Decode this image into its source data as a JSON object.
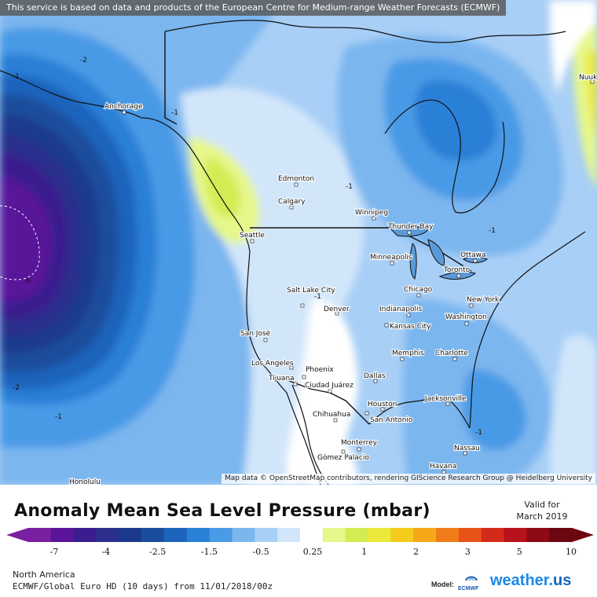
{
  "notice": "This service is based on data and products of the European Centre for Medium-range Weather Forecasts (ECMWF)",
  "attribution": "Map data © OpenStreetMap contributors, rendering GIScience Research Group @ Heidelberg University",
  "title": "Anomaly Mean Sea Level Pressure (mbar)",
  "valid": {
    "line1": "Valid for",
    "line2": "March 2019"
  },
  "region": "North America",
  "model_line": "ECMWF/Global Euro HD (10 days) from 11/01/2018/00z",
  "model_label": "Model:",
  "ecmwf_logo_text": "ECMWF",
  "brand": {
    "main": "weather.",
    "accent": "us"
  },
  "colors": {
    "ocean_blue": "#3a8ee6",
    "land": "#e6e9ec",
    "lake": "#5b9ad8"
  },
  "colorbar": {
    "colors": [
      "#7a1f9f",
      "#5a1499",
      "#3b1d8f",
      "#2b2f8c",
      "#1b3a8c",
      "#1a4e9c",
      "#1d64bc",
      "#2a7fd6",
      "#4a9ae6",
      "#7bb6ef",
      "#a8cff6",
      "#d2e6fa",
      "#ffffff",
      "#e6f78c",
      "#d4ec52",
      "#ece83a",
      "#f5cc1e",
      "#f5a81a",
      "#f17c1a",
      "#e85418",
      "#d42a1a",
      "#b8121c",
      "#8c0a16",
      "#6c0610"
    ],
    "tick_labels": [
      "-7",
      "-4",
      "-2.5",
      "-1.5",
      "-0.5",
      "0.25",
      "1",
      "2",
      "3",
      "5",
      "10"
    ]
  },
  "cities": [
    {
      "name": "Anchorage"
    },
    {
      "name": "Edmonton"
    },
    {
      "name": "Calgary"
    },
    {
      "name": "Winnipeg"
    },
    {
      "name": "Thunder Bay"
    },
    {
      "name": "Seattle"
    },
    {
      "name": "Ottawa"
    },
    {
      "name": "Minneapolis"
    },
    {
      "name": "Toronto"
    },
    {
      "name": "Salt Lake City"
    },
    {
      "name": "Chicago"
    },
    {
      "name": "New York"
    },
    {
      "name": "Denver"
    },
    {
      "name": "Indianapolis"
    },
    {
      "name": "Washington"
    },
    {
      "name": "Kansas City"
    },
    {
      "name": "San José"
    },
    {
      "name": "Memphis"
    },
    {
      "name": "Charlotte"
    },
    {
      "name": "Los Angeles"
    },
    {
      "name": "Phoenix"
    },
    {
      "name": "Dallas"
    },
    {
      "name": "Tijuana"
    },
    {
      "name": "Ciudad Juárez"
    },
    {
      "name": "Jacksonville"
    },
    {
      "name": "Houston"
    },
    {
      "name": "Chihuahua"
    },
    {
      "name": "San Antonio"
    },
    {
      "name": "Monterrey"
    },
    {
      "name": "Nassau"
    },
    {
      "name": "Gómez Palacio"
    },
    {
      "name": "Havana"
    },
    {
      "name": "Nuuk"
    },
    {
      "name": "Honolulu"
    }
  ],
  "contour_labels": [
    "-2",
    "-1",
    "-1",
    "-1",
    "-1",
    "-1",
    "-2",
    "-1",
    "-1",
    "-6"
  ]
}
